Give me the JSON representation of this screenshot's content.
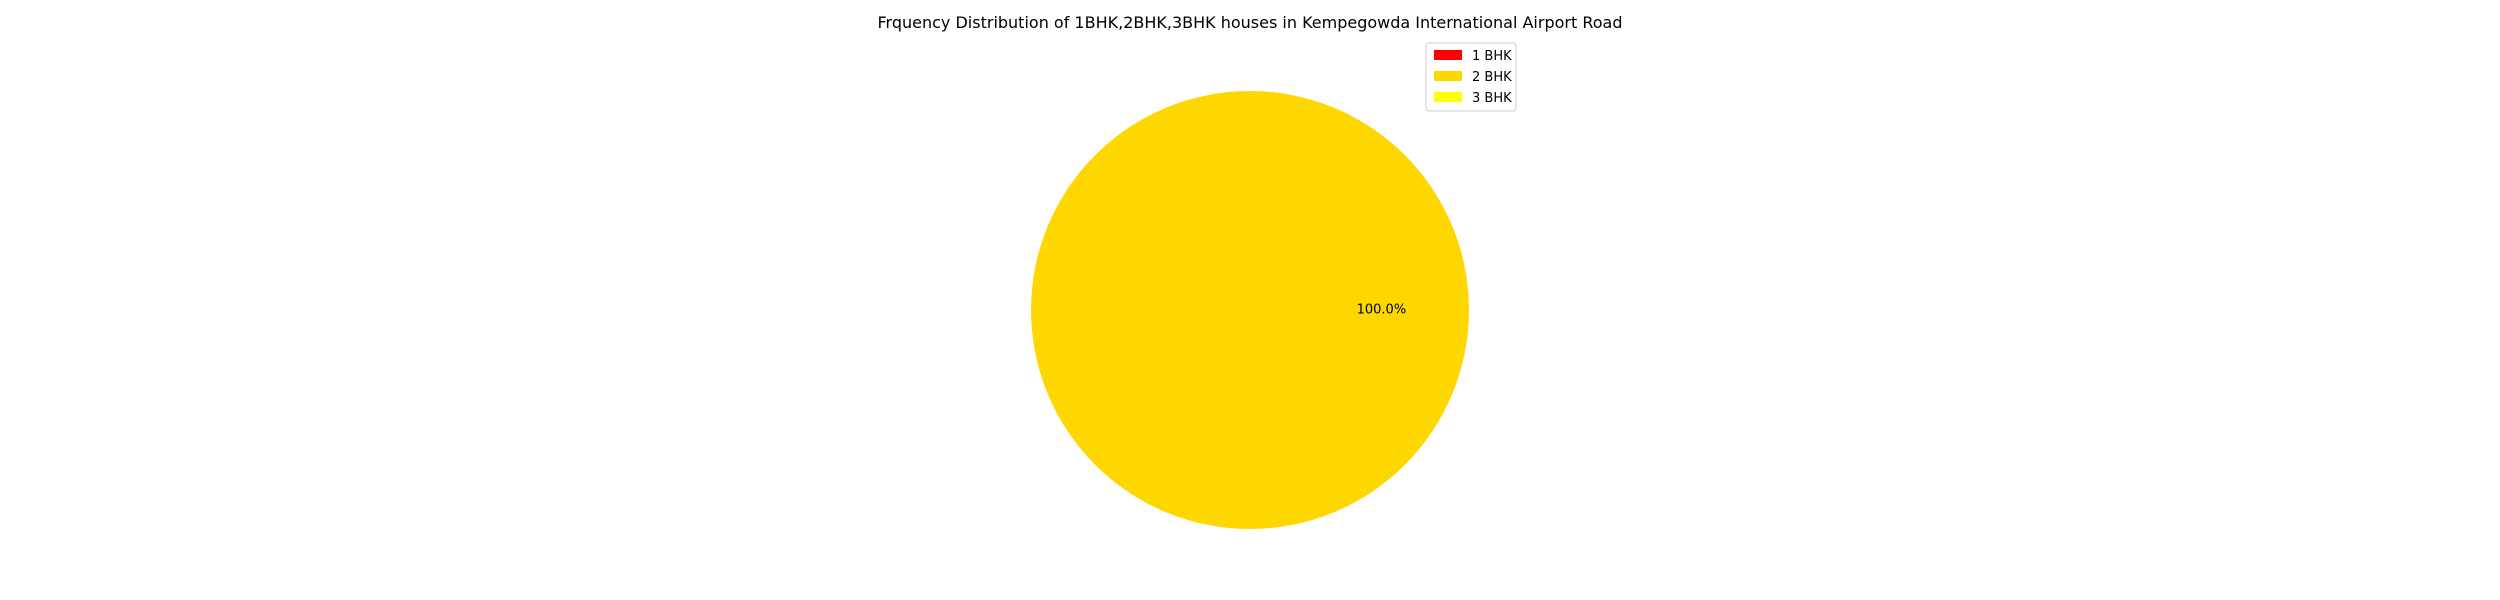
{
  "chart_data": {
    "type": "pie",
    "title": "Frquency Distribution of 1BHK,2BHK,3BHK houses in Kempegowda International Airport Road",
    "categories": [
      "1 BHK",
      "2 BHK",
      "3 BHK"
    ],
    "values": [
      0,
      1,
      0
    ],
    "colors": [
      "#ff0000",
      "#ffd700",
      "#ffff00"
    ],
    "pct_labels": [
      "100.0%"
    ],
    "legend": {
      "location": "top-right",
      "entries": [
        "1 BHK",
        "2 BHK",
        "3 BHK"
      ]
    }
  }
}
